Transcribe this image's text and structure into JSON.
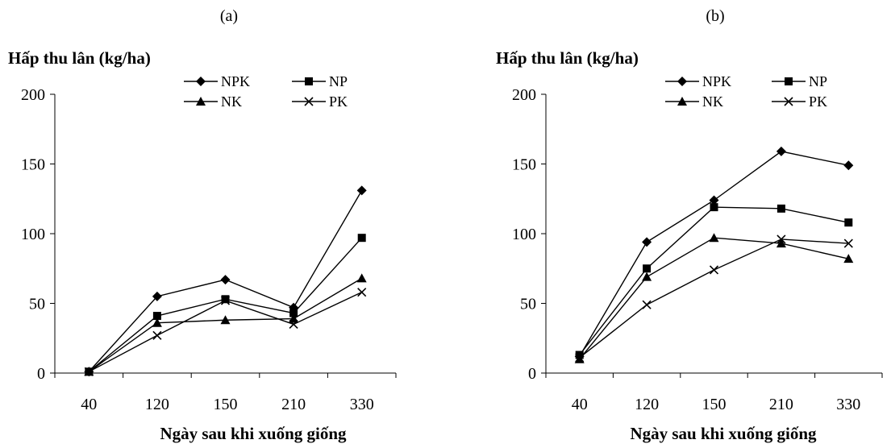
{
  "chart_data": [
    {
      "type": "line",
      "panel_label": "(a)",
      "ylabel": "Hấp thu lân (kg/ha)",
      "xlabel": "Ngày sau khi xuống giống",
      "categories": [
        "40",
        "120",
        "150",
        "210",
        "330"
      ],
      "yticks": [
        "0",
        "50",
        "100",
        "150",
        "200"
      ],
      "ylim": [
        0,
        200
      ],
      "grid": false,
      "legend_position": "top-right",
      "series": [
        {
          "name": "NPK",
          "marker": "diamond",
          "values": [
            1,
            55,
            67,
            47,
            131
          ]
        },
        {
          "name": "NP",
          "marker": "square",
          "values": [
            1,
            41,
            53,
            43,
            97
          ]
        },
        {
          "name": "NK",
          "marker": "triangle",
          "values": [
            1,
            36,
            38,
            39,
            68
          ]
        },
        {
          "name": "PK",
          "marker": "x",
          "values": [
            1,
            27,
            52,
            35,
            58
          ]
        }
      ]
    },
    {
      "type": "line",
      "panel_label": "(b)",
      "ylabel": "Hấp thu lân (kg/ha)",
      "xlabel": "Ngày sau khi xuống giống",
      "categories": [
        "40",
        "120",
        "150",
        "210",
        "330"
      ],
      "yticks": [
        "0",
        "50",
        "100",
        "150",
        "200"
      ],
      "ylim": [
        0,
        200
      ],
      "grid": false,
      "legend_position": "top-right",
      "series": [
        {
          "name": "NPK",
          "marker": "diamond",
          "values": [
            12,
            94,
            124,
            159,
            149
          ]
        },
        {
          "name": "NP",
          "marker": "square",
          "values": [
            13,
            75,
            119,
            118,
            108
          ]
        },
        {
          "name": "NK",
          "marker": "triangle",
          "values": [
            10,
            69,
            97,
            93,
            82
          ]
        },
        {
          "name": "PK",
          "marker": "x",
          "values": [
            11,
            49,
            74,
            96,
            93
          ]
        }
      ]
    }
  ]
}
